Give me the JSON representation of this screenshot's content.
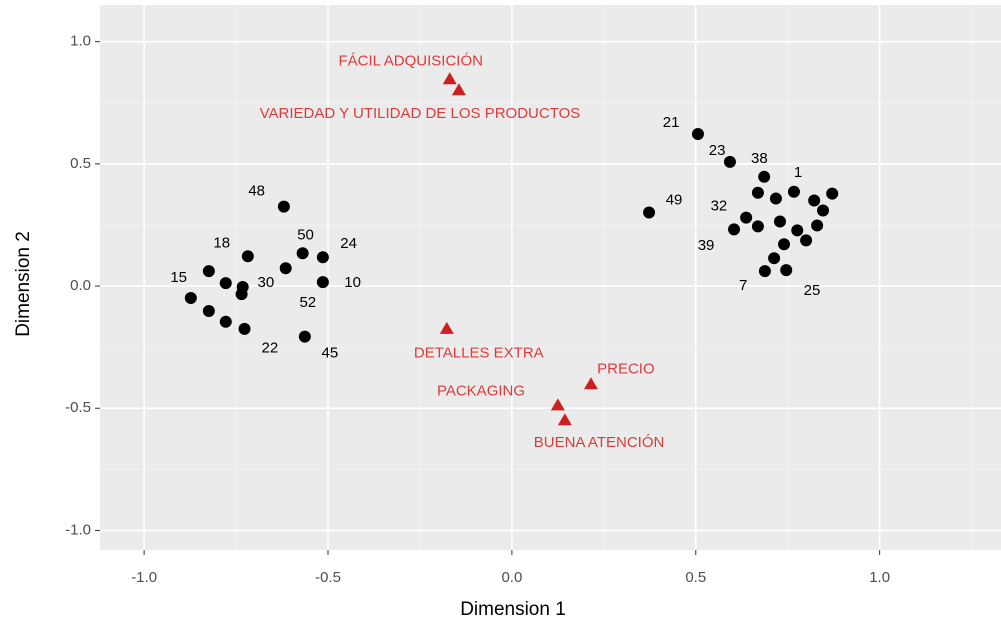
{
  "chart_data": {
    "type": "scatter",
    "xlabel": "Dimension 1",
    "ylabel": "Dimension 2",
    "xlim": [
      -1.12,
      1.33
    ],
    "ylim": [
      -1.08,
      1.15
    ],
    "xticks": [
      {
        "value": -1.0,
        "label": "-1.0"
      },
      -0.5,
      {
        "value": 0.0,
        "label": "0.0"
      },
      0.5,
      {
        "value": 1.0,
        "label": "1.0"
      }
    ],
    "yticks": [
      {
        "value": -1.0,
        "label": "-1.0"
      },
      -0.5,
      {
        "value": 0.0,
        "label": "0.0"
      },
      0.5,
      {
        "value": 1.0,
        "label": "1.0"
      }
    ],
    "x_minor_grid": [
      -0.75,
      -0.25,
      0.25,
      0.75,
      1.25
    ],
    "y_minor_grid": [
      -0.75,
      -0.25,
      0.25,
      0.75
    ],
    "grid": true,
    "series": [
      {
        "marker": "circle",
        "color": "#000000",
        "x": [
          -0.62,
          -0.718,
          -0.824,
          -0.778,
          -0.732,
          -0.735,
          -0.873,
          -0.824,
          -0.778,
          -0.727,
          -0.563,
          -0.615,
          -0.569,
          -0.514,
          -0.514,
          0.506,
          0.593,
          0.686,
          0.373,
          0.669,
          0.718,
          0.767,
          0.822,
          0.871,
          0.846,
          0.637,
          0.604,
          0.669,
          0.729,
          0.776,
          0.83,
          0.8,
          0.74,
          0.713,
          0.688,
          0.746
        ],
        "y": [
          0.325,
          0.122,
          0.061,
          0.012,
          -0.004,
          -0.033,
          -0.049,
          -0.102,
          -0.146,
          -0.175,
          -0.207,
          0.073,
          0.134,
          0.118,
          0.016,
          0.622,
          0.508,
          0.447,
          0.301,
          0.382,
          0.358,
          0.386,
          0.35,
          0.378,
          0.309,
          0.28,
          0.232,
          0.244,
          0.264,
          0.228,
          0.248,
          0.187,
          0.171,
          0.114,
          0.061,
          0.065
        ]
      },
      {
        "marker": "triangle",
        "color": "#cc1f1f",
        "x": [
          -0.169,
          -0.144,
          -0.177,
          0.215,
          0.125,
          0.144
        ],
        "y": [
          0.846,
          0.801,
          -0.175,
          -0.402,
          -0.488,
          -0.549
        ]
      }
    ],
    "annotations": [
      {
        "text": "48",
        "x": -0.694,
        "y": 0.386,
        "color": "#000000"
      },
      {
        "text": "18",
        "x": -0.789,
        "y": 0.175,
        "color": "#000000"
      },
      {
        "text": "15",
        "x": -0.906,
        "y": 0.033,
        "color": "#000000"
      },
      {
        "text": "30",
        "x": -0.669,
        "y": 0.012,
        "color": "#000000"
      },
      {
        "text": "22",
        "x": -0.658,
        "y": -0.256,
        "color": "#000000"
      },
      {
        "text": "45",
        "x": -0.495,
        "y": -0.276,
        "color": "#000000"
      },
      {
        "text": "52",
        "x": -0.555,
        "y": -0.069,
        "color": "#000000"
      },
      {
        "text": "50",
        "x": -0.561,
        "y": 0.207,
        "color": "#000000"
      },
      {
        "text": "24",
        "x": -0.444,
        "y": 0.171,
        "color": "#000000"
      },
      {
        "text": "10",
        "x": -0.433,
        "y": 0.012,
        "color": "#000000"
      },
      {
        "text": "21",
        "x": 0.433,
        "y": 0.667,
        "color": "#000000"
      },
      {
        "text": "23",
        "x": 0.558,
        "y": 0.553,
        "color": "#000000"
      },
      {
        "text": "38",
        "x": 0.673,
        "y": 0.52,
        "color": "#000000"
      },
      {
        "text": "1",
        "x": 0.778,
        "y": 0.463,
        "color": "#000000"
      },
      {
        "text": "49",
        "x": 0.441,
        "y": 0.35,
        "color": "#000000"
      },
      {
        "text": "32",
        "x": 0.563,
        "y": 0.325,
        "color": "#000000"
      },
      {
        "text": "39",
        "x": 0.528,
        "y": 0.163,
        "color": "#000000"
      },
      {
        "text": "7",
        "x": 0.629,
        "y": 0.0,
        "color": "#000000"
      },
      {
        "text": "25",
        "x": 0.816,
        "y": -0.02,
        "color": "#000000"
      },
      {
        "text": "FÁCIL ADQUISICIÓN",
        "x": -0.275,
        "y": 0.919,
        "color": "#e03a3a"
      },
      {
        "text": "VARIEDAD Y UTILIDAD DE LOS PRODUCTOS",
        "x": -0.25,
        "y": 0.703,
        "color": "#e03a3a"
      },
      {
        "text": "DETALLES EXTRA",
        "x": -0.09,
        "y": -0.276,
        "color": "#e03a3a"
      },
      {
        "text": "PRECIO",
        "x": 0.31,
        "y": -0.341,
        "color": "#e03a3a"
      },
      {
        "text": "PACKAGING",
        "x": -0.084,
        "y": -0.431,
        "color": "#e03a3a"
      },
      {
        "text": "BUENA ATENCIÓN",
        "x": 0.237,
        "y": -0.642,
        "color": "#e03a3a"
      }
    ]
  }
}
